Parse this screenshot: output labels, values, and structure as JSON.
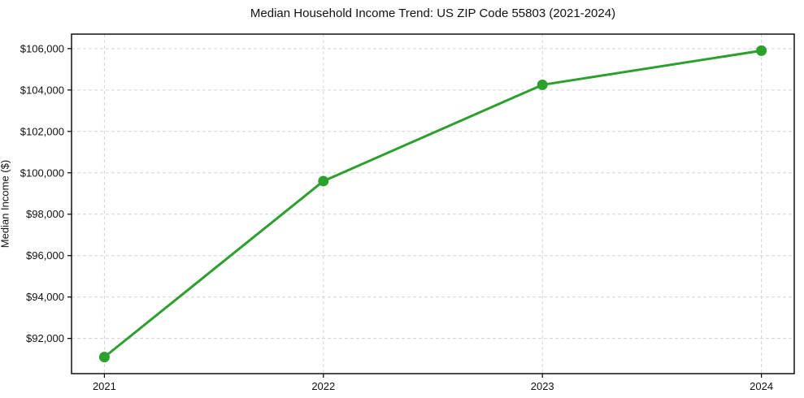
{
  "chart_data": {
    "type": "line",
    "title": "Median Household Income Trend: US ZIP Code 55803 (2021-2024)",
    "xlabel": "",
    "ylabel": "Median Income ($)",
    "x": [
      2021,
      2022,
      2023,
      2024
    ],
    "series": [
      {
        "name": "Median Income",
        "values": [
          91100,
          99600,
          104250,
          105900
        ]
      }
    ],
    "xticks": [
      2021,
      2022,
      2023,
      2024
    ],
    "xtick_labels": [
      "2021",
      "2022",
      "2023",
      "2024"
    ],
    "yticks": [
      92000,
      94000,
      96000,
      98000,
      100000,
      102000,
      104000,
      106000
    ],
    "ytick_labels": [
      "$92,000",
      "$94,000",
      "$96,000",
      "$98,000",
      "$100,000",
      "$102,000",
      "$104,000",
      "$106,000"
    ],
    "xlim": [
      2020.85,
      2024.15
    ],
    "ylim": [
      90300,
      106700
    ],
    "grid": "dashed both axes",
    "legend": "none",
    "colors": {
      "line": "#2ca02c",
      "marker": "#2ca02c",
      "grid": "#d4d4d4",
      "frame": "#000000",
      "text": "#111111",
      "background": "#ffffff"
    }
  }
}
